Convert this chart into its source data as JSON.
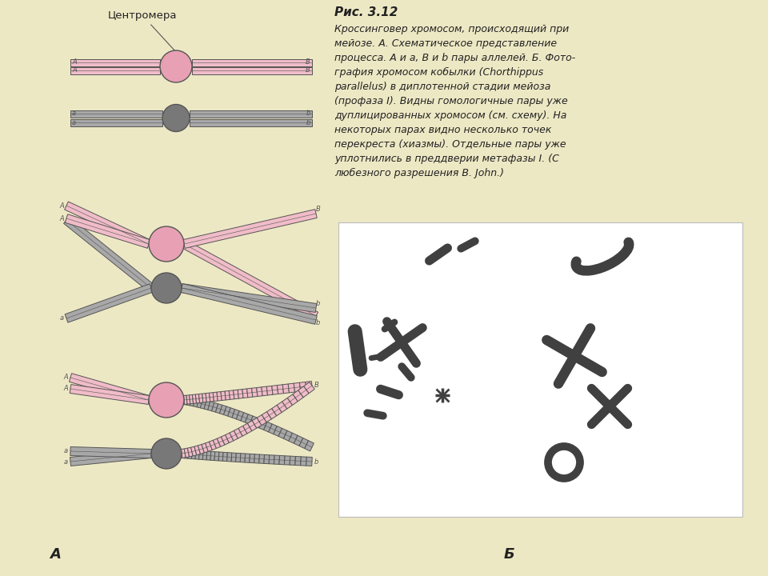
{
  "bg_color": "#ede8c4",
  "pink": "#f0bcc8",
  "pink_cent": "#e8a0b4",
  "gray": "#a8a8a8",
  "gray_cent": "#787878",
  "outline": "#555555",
  "text_color": "#222222",
  "photo_bg": "#ffffff",
  "title": "Рис. 3.12",
  "caption": [
    "Кроссинговер хромосом, происходящий при",
    "мейозе. А. Схематическое представление",
    "процесса. А и а, В и b пары аллелей. Б. Фото-",
    "графия хромосом кобылки (Chorthippus",
    "parallelus) в диплотенной стадии мейоза",
    "(профаза I). Видны гомологичные пары уже",
    "дуплицированных хромосом (см. схему). На",
    "некоторых парах видно несколько точек",
    "перекреста (хиазмы). Отдельные пары уже",
    "уплотнились в преддверии метафазы I. (С",
    "любезного разрешения B. John.)"
  ],
  "label_A": "А",
  "label_B": "Б",
  "centromera": "Центромера"
}
